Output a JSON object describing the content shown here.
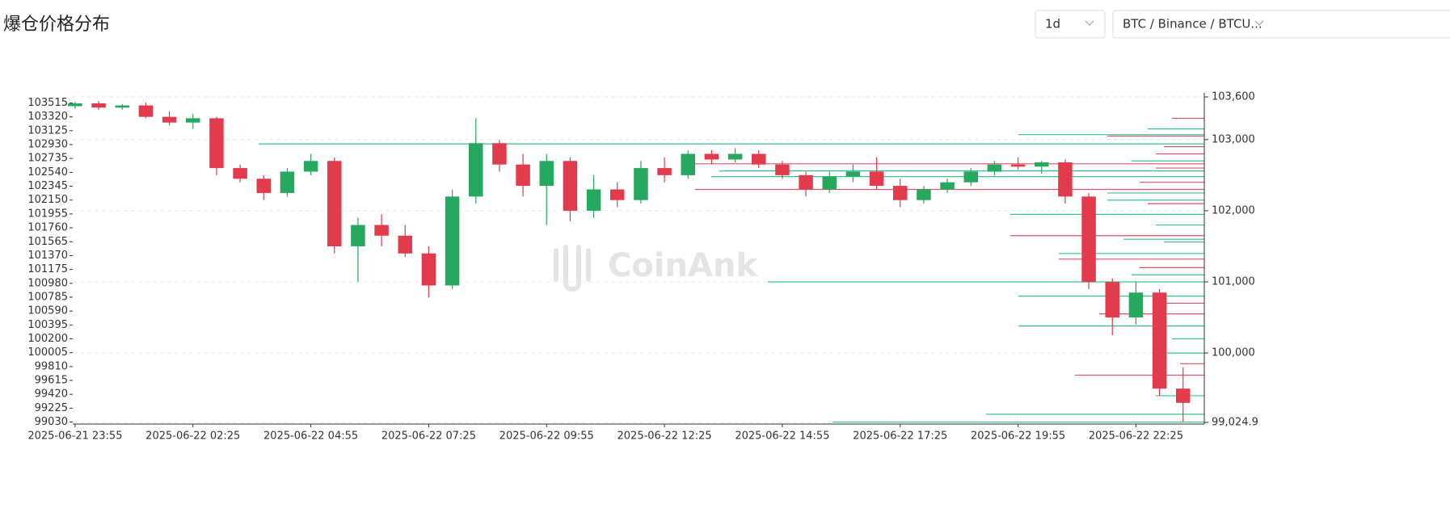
{
  "header": {
    "title": "爆仓价格分布",
    "interval": "1d",
    "symbol": "BTC / Binance / BTCU...",
    "watermark": "CoinAnk"
  },
  "chart_data": {
    "type": "candlestick",
    "open": [
      103470,
      103510,
      103450,
      103480,
      103320,
      103240,
      103300,
      102600,
      102450,
      102250,
      102550,
      102700,
      101500,
      101800,
      101650,
      101400,
      100950,
      102200,
      102950,
      102650,
      102350,
      102700,
      102000,
      102300,
      102150,
      102600,
      102500,
      102800,
      102720,
      102800,
      102650,
      102500,
      102300,
      102480,
      102550,
      102350,
      102150,
      102300,
      102400,
      102550,
      102650,
      102620,
      102680,
      102200,
      101000,
      100500,
      100850,
      99500
    ],
    "high": [
      103530,
      103540,
      103500,
      103520,
      103400,
      103360,
      103320,
      102650,
      102500,
      102600,
      102800,
      102750,
      101900,
      101950,
      101800,
      101500,
      102300,
      103300,
      103000,
      102800,
      102800,
      102750,
      102500,
      102400,
      102700,
      102750,
      102850,
      102850,
      102880,
      102850,
      102700,
      102550,
      102550,
      102650,
      102750,
      102450,
      102350,
      102450,
      102600,
      102700,
      102750,
      102700,
      102720,
      102250,
      101050,
      101000,
      100900,
      99800
    ],
    "low": [
      103430,
      103420,
      103420,
      103300,
      103200,
      103150,
      102500,
      102400,
      102150,
      102200,
      102500,
      101400,
      101000,
      101500,
      101350,
      100780,
      100900,
      102100,
      102550,
      102200,
      101800,
      101850,
      101900,
      102050,
      102100,
      102400,
      102450,
      102650,
      102680,
      102600,
      102450,
      102200,
      102250,
      102400,
      102300,
      102050,
      102100,
      102250,
      102350,
      102500,
      102580,
      102520,
      102100,
      100900,
      100250,
      100400,
      99400,
      99030
    ],
    "close": [
      103510,
      103450,
      103480,
      103320,
      103240,
      103300,
      102600,
      102450,
      102250,
      102550,
      102700,
      101500,
      101800,
      101650,
      101400,
      100950,
      102200,
      102950,
      102650,
      102350,
      102700,
      102000,
      102300,
      102150,
      102600,
      102500,
      102800,
      102720,
      102800,
      102650,
      102500,
      102300,
      102480,
      102550,
      102350,
      102150,
      102300,
      102400,
      102550,
      102650,
      102620,
      102680,
      102200,
      101000,
      100500,
      100850,
      99500,
      99300
    ],
    "up_color": "#27a85f",
    "down_color": "#e23b4b",
    "xlim": [
      -0.1,
      47.9
    ],
    "xticks": [
      {
        "value": 0,
        "label": "2025-06-21 23:55"
      },
      {
        "value": 5,
        "label": "2025-06-22 02:25"
      },
      {
        "value": 10,
        "label": "2025-06-22 04:55"
      },
      {
        "value": 15,
        "label": "2025-06-22 07:25"
      },
      {
        "value": 20,
        "label": "2025-06-22 09:55"
      },
      {
        "value": 25,
        "label": "2025-06-22 12:25"
      },
      {
        "value": 30,
        "label": "2025-06-22 14:55"
      },
      {
        "value": 35,
        "label": "2025-06-22 17:25"
      },
      {
        "value": 40,
        "label": "2025-06-22 19:55"
      },
      {
        "value": 45,
        "label": "2025-06-22 22:25"
      }
    ],
    "ylim": [
      99024.9,
      103600
    ],
    "yticks": [
      103515,
      103320,
      103125,
      102930,
      102735,
      102540,
      102345,
      102150,
      101955,
      101760,
      101565,
      101370,
      101175,
      100980,
      100785,
      100590,
      100395,
      100200,
      100005,
      99810,
      99615,
      99420,
      99225,
      99030
    ],
    "y2lim": [
      99024.9,
      103600
    ],
    "y2ticks": [
      {
        "value": 103600,
        "label": "103,600"
      },
      {
        "value": 103000,
        "label": "103,000"
      },
      {
        "value": 102000,
        "label": "102,000"
      },
      {
        "value": 101000,
        "label": "101,000"
      },
      {
        "value": 100000,
        "label": "100,000"
      },
      {
        "value": 99024.9,
        "label": "99,024.9"
      }
    ],
    "grid": true,
    "liquidations": {
      "prices": [
        102940,
        102660,
        102560,
        102480,
        102300,
        101950,
        101650,
        101560,
        101320,
        101000,
        100800,
        100550,
        100380,
        99690,
        99140,
        99030,
        103070,
        103050,
        102800,
        102150,
        101400,
        101600,
        101200,
        100000,
        103300,
        103150,
        102900,
        102700,
        102600,
        102400,
        102250,
        102100,
        101800,
        101100,
        100700,
        100200,
        99850,
        99400
      ],
      "values": [
        1170,
        630,
        600,
        610,
        630,
        240,
        240,
        50,
        180,
        540,
        230,
        130,
        230,
        160,
        270,
        460,
        230,
        120,
        60,
        120,
        180,
        100,
        80,
        60,
        40,
        70,
        50,
        90,
        60,
        80,
        120,
        70,
        60,
        90,
        50,
        40,
        30,
        60
      ],
      "colors": [
        "#3cc08a",
        "#d9536a",
        "#3cc08a",
        "#3cc08a",
        "#d9536a",
        "#3cc08a",
        "#d9536a",
        "#3cc08a",
        "#d9536a",
        "#3cc08a",
        "#3cc08a",
        "#d9536a",
        "#3cc08a",
        "#d9536a",
        "#3cc08a",
        "#3cc08a",
        "#3cc08a",
        "#d9536a",
        "#d9536a",
        "#3cc08a",
        "#3cc08a",
        "#3cc08a",
        "#d9536a",
        "#3cc08a",
        "#d9536a",
        "#3cc08a",
        "#d9536a",
        "#3cc08a",
        "#d9536a",
        "#d9536a",
        "#3cc08a",
        "#d9536a",
        "#3cc08a",
        "#3cc08a",
        "#d9536a",
        "#3cc08a",
        "#d9536a",
        "#3cc08a"
      ]
    }
  }
}
